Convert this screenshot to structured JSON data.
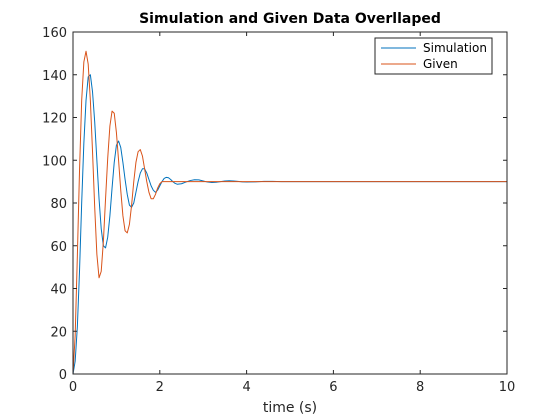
{
  "chart_data": {
    "type": "line",
    "title": "Simulation and Given Data Overllaped",
    "xlabel": "time (s)",
    "ylabel": "",
    "xlim": [
      0,
      10
    ],
    "ylim": [
      0,
      160
    ],
    "x_ticks": [
      0,
      2,
      4,
      6,
      8,
      10
    ],
    "y_ticks": [
      0,
      20,
      40,
      60,
      80,
      100,
      120,
      140,
      160
    ],
    "grid": false,
    "legend_position": "top-right",
    "series": [
      {
        "name": "Simulation",
        "color": "#0072BD",
        "x": [
          0,
          0.05,
          0.1,
          0.15,
          0.2,
          0.25,
          0.3,
          0.35,
          0.4,
          0.45,
          0.5,
          0.55,
          0.6,
          0.65,
          0.7,
          0.75,
          0.8,
          0.85,
          0.9,
          0.95,
          1.0,
          1.05,
          1.1,
          1.15,
          1.2,
          1.25,
          1.3,
          1.35,
          1.4,
          1.45,
          1.5,
          1.55,
          1.6,
          1.65,
          1.7,
          1.75,
          1.8,
          1.85,
          1.9,
          1.95,
          2.0,
          2.05,
          2.1,
          2.15,
          2.2,
          2.25,
          2.3,
          2.35,
          2.4,
          2.5,
          2.6,
          2.7,
          2.8,
          2.9,
          3.0,
          3.1,
          3.2,
          3.3,
          3.4,
          3.5,
          3.6,
          3.7,
          3.8,
          3.9,
          4.0,
          4.2,
          4.4,
          4.6,
          4.8,
          5.0,
          5.5,
          6.0,
          6.5,
          7.0,
          8.0,
          9.0,
          10.0
        ],
        "y": [
          0,
          6,
          22,
          48,
          80,
          108,
          128,
          139,
          140,
          132,
          118,
          100,
          82,
          68,
          60,
          59,
          64,
          74,
          87,
          99,
          107,
          109,
          106,
          99,
          91,
          84,
          79,
          78,
          80,
          85,
          90,
          94,
          96,
          96,
          94,
          91,
          88,
          86,
          85,
          86,
          88,
          90,
          91.5,
          92,
          91.8,
          91,
          90,
          89.2,
          88.8,
          89,
          89.8,
          90.5,
          90.9,
          90.8,
          90.3,
          89.8,
          89.6,
          89.7,
          90,
          90.3,
          90.4,
          90.3,
          90.1,
          89.9,
          89.8,
          89.9,
          90.1,
          90.1,
          90,
          90,
          90,
          90,
          90,
          90,
          90,
          90,
          90
        ]
      },
      {
        "name": "Given",
        "color": "#D95319",
        "x": [
          0,
          0.05,
          0.1,
          0.15,
          0.2,
          0.25,
          0.3,
          0.35,
          0.4,
          0.45,
          0.5,
          0.55,
          0.6,
          0.65,
          0.7,
          0.75,
          0.8,
          0.85,
          0.9,
          0.95,
          1.0,
          1.05,
          1.1,
          1.15,
          1.2,
          1.25,
          1.3,
          1.35,
          1.4,
          1.45,
          1.5,
          1.55,
          1.6,
          1.65,
          1.7,
          1.75,
          1.8,
          1.85,
          1.9,
          1.95,
          2.0,
          2.05,
          2.1,
          2.15,
          2.2,
          2.3,
          2.5,
          3.0,
          4.0,
          6.0,
          8.0,
          10.0
        ],
        "y": [
          0,
          18,
          55,
          95,
          128,
          146,
          151,
          145,
          128,
          104,
          78,
          56,
          45,
          48,
          62,
          82,
          101,
          116,
          123,
          122,
          113,
          100,
          86,
          74,
          67,
          66,
          70,
          79,
          90,
          99,
          104,
          105,
          102,
          96,
          90,
          85,
          82,
          82,
          84,
          87,
          89,
          90,
          90,
          90,
          90,
          90,
          90,
          90,
          90,
          90,
          90,
          90
        ]
      }
    ]
  }
}
